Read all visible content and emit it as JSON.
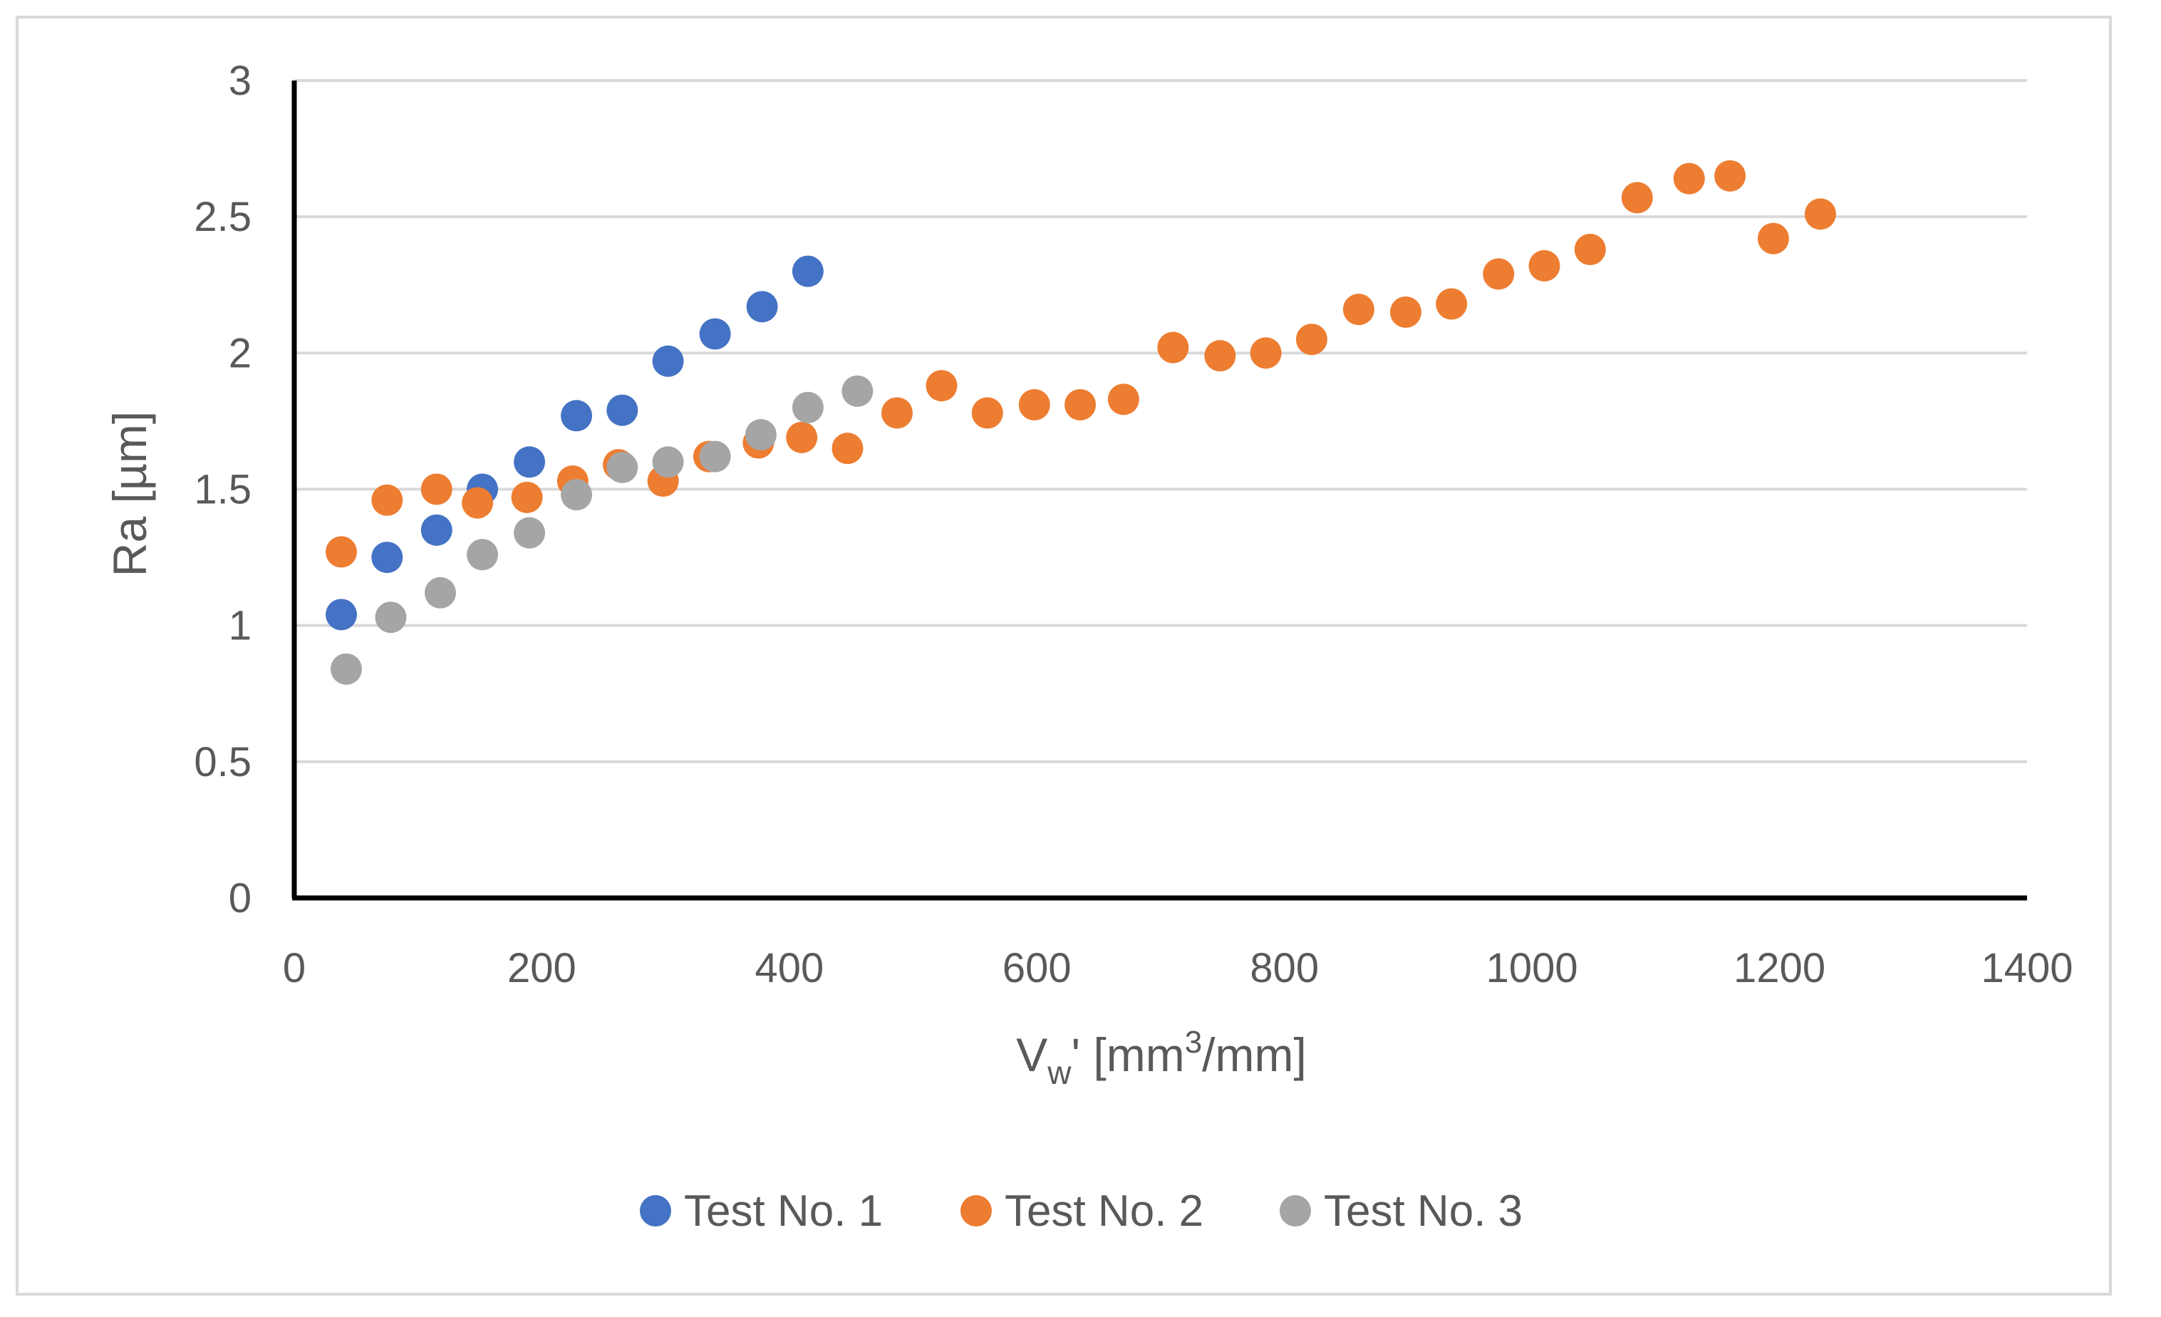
{
  "chart_data": {
    "type": "scatter",
    "title": "",
    "xlabel": {
      "base": "V",
      "sub": "w",
      "mid": "' [mm",
      "sup": "3",
      "tail": "/mm]"
    },
    "ylabel": "Ra [µm]",
    "xlim": [
      0,
      1400
    ],
    "ylim": [
      0,
      3
    ],
    "xticks": [
      0,
      200,
      400,
      600,
      800,
      1000,
      1200,
      1400
    ],
    "yticks": [
      0,
      0.5,
      1,
      1.5,
      2,
      2.5,
      3
    ],
    "xtick_labels": [
      "0",
      "200",
      "400",
      "600",
      "800",
      "1000",
      "1200",
      "1400"
    ],
    "ytick_labels": [
      "0",
      "0.5",
      "1",
      "1.5",
      "2",
      "2.5",
      "3"
    ],
    "grid": "horizontal",
    "legend_position": "bottom",
    "series": [
      {
        "name": "Test No. 1",
        "color": "#4472c4",
        "x": [
          38,
          75,
          115,
          152,
          190,
          228,
          265,
          302,
          340,
          378,
          415
        ],
        "y": [
          1.04,
          1.25,
          1.35,
          1.5,
          1.6,
          1.77,
          1.79,
          1.97,
          2.07,
          2.17,
          2.3
        ]
      },
      {
        "name": "Test No. 2",
        "color": "#ed7d31",
        "x": [
          38,
          75,
          115,
          148,
          188,
          225,
          262,
          298,
          335,
          375,
          410,
          447,
          487,
          523,
          560,
          598,
          635,
          670,
          710,
          748,
          785,
          822,
          860,
          898,
          935,
          973,
          1010,
          1047,
          1085,
          1127,
          1160,
          1195,
          1233
        ],
        "y": [
          1.27,
          1.46,
          1.5,
          1.45,
          1.47,
          1.53,
          1.59,
          1.53,
          1.62,
          1.67,
          1.69,
          1.65,
          1.78,
          1.88,
          1.78,
          1.81,
          1.81,
          1.83,
          2.02,
          1.99,
          2.0,
          2.05,
          2.16,
          2.15,
          2.18,
          2.29,
          2.32,
          2.38,
          2.57,
          2.64,
          2.65,
          2.42,
          2.51
        ]
      },
      {
        "name": "Test No. 3",
        "color": "#a5a5a5",
        "x": [
          42,
          78,
          118,
          152,
          190,
          228,
          265,
          302,
          340,
          377,
          415,
          455
        ],
        "y": [
          0.84,
          1.03,
          1.12,
          1.26,
          1.34,
          1.48,
          1.58,
          1.6,
          1.62,
          1.7,
          1.8,
          1.86
        ]
      }
    ]
  }
}
